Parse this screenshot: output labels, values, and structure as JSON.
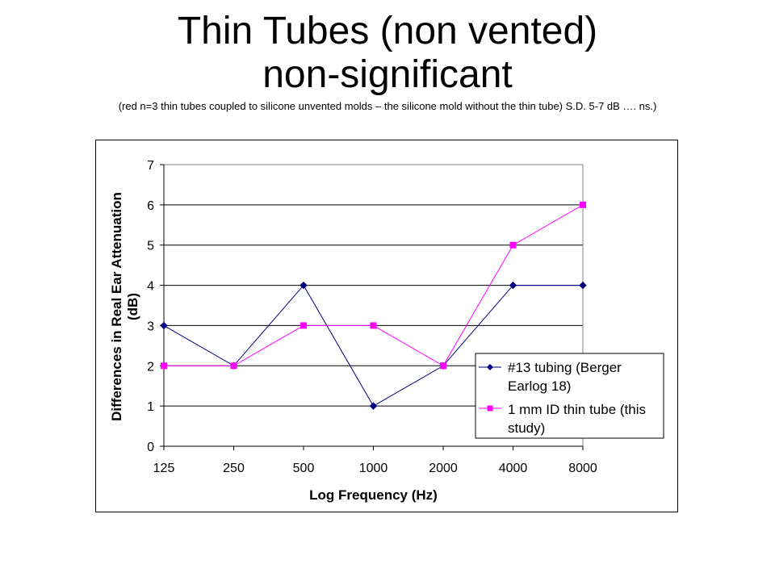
{
  "slide": {
    "title_line1": "Thin Tubes (non vented)",
    "title_line2": "non-significant",
    "subtitle": "(red n=3 thin tubes coupled to silicone unvented molds – the silicone mold without the thin tube) S.D.  5-7 dB …. ns.)"
  },
  "chart_data": {
    "type": "line",
    "title": "",
    "xlabel": "Log Frequency (Hz)",
    "ylabel_line1": "Differences in Real Ear Attenuation",
    "ylabel_line2": "(dB)",
    "categories": [
      "125",
      "250",
      "500",
      "1000",
      "2000",
      "4000",
      "8000"
    ],
    "ylim": [
      0,
      7
    ],
    "yticks": [
      "0",
      "1",
      "2",
      "3",
      "4",
      "5",
      "6",
      "7"
    ],
    "grid": "horizontal",
    "legend_position": "bottom-right",
    "series": [
      {
        "name_line1": "#13 tubing (Berger",
        "name_line2": "Earlog 18)",
        "color": "#000080",
        "marker": "diamond",
        "values": [
          3,
          2,
          4,
          1,
          2,
          4,
          4
        ]
      },
      {
        "name_line1": "1 mm ID thin tube (this",
        "name_line2": "study)",
        "color": "#FF00FF",
        "marker": "square",
        "values": [
          2,
          2,
          3,
          3,
          2,
          5,
          6
        ]
      }
    ]
  }
}
